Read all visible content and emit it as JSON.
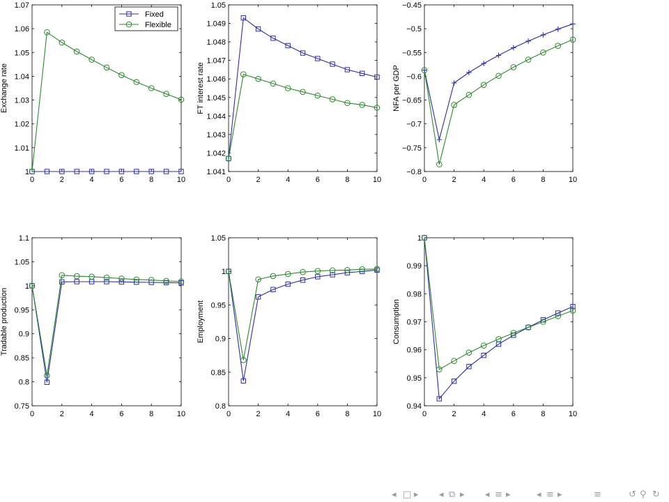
{
  "legend": {
    "fixed": "Fixed",
    "flexible": "Flexible"
  },
  "colors": {
    "fixed": "#2b2bb0",
    "flexible": "#2a8a2a",
    "axis": "#000000"
  },
  "chart_data": [
    {
      "type": "line",
      "ylabel": "Exchange rate",
      "xlim": [
        0,
        10
      ],
      "ylim": [
        1,
        1.07
      ],
      "xticks": [
        "0",
        "2",
        "4",
        "6",
        "8",
        "10"
      ],
      "yticks": [
        "1",
        "1.01",
        "1.02",
        "1.03",
        "1.04",
        "1.05",
        "1.06",
        "1.07"
      ],
      "legend_position": "top-right",
      "series": [
        {
          "name": "Fixed",
          "marker": "square",
          "x": [
            0,
            1,
            2,
            3,
            4,
            5,
            6,
            7,
            8,
            9,
            10
          ],
          "y": [
            1,
            1,
            1,
            1,
            1,
            1,
            1,
            1,
            1,
            1,
            1
          ]
        },
        {
          "name": "Flexible",
          "marker": "circle",
          "x": [
            0,
            1,
            2,
            3,
            4,
            5,
            6,
            7,
            8,
            9,
            10
          ],
          "y": [
            1,
            1.0585,
            1.0542,
            1.0504,
            1.047,
            1.0437,
            1.0405,
            1.0376,
            1.035,
            1.0326,
            1.0302
          ]
        }
      ]
    },
    {
      "type": "line",
      "ylabel": "FT interest rate",
      "xlim": [
        0,
        10
      ],
      "ylim": [
        1.041,
        1.05
      ],
      "xticks": [
        "0",
        "2",
        "4",
        "6",
        "8",
        "10"
      ],
      "yticks": [
        "1.041",
        "1.042",
        "1.043",
        "1.044",
        "1.045",
        "1.046",
        "1.047",
        "1.048",
        "1.049",
        "1.05"
      ],
      "series": [
        {
          "marker": "square",
          "x": [
            0,
            1,
            2,
            3,
            4,
            5,
            6,
            7,
            8,
            9,
            10
          ],
          "y": [
            1.0417,
            1.0493,
            1.0487,
            1.0482,
            1.0478,
            1.0474,
            1.0471,
            1.0468,
            1.0465,
            1.0463,
            1.0461
          ]
        },
        {
          "marker": "circle",
          "x": [
            0,
            1,
            2,
            3,
            4,
            5,
            6,
            7,
            8,
            9,
            10
          ],
          "y": [
            1.0417,
            1.04625,
            1.046,
            1.04575,
            1.0455,
            1.0453,
            1.0451,
            1.0449,
            1.0447,
            1.0446,
            1.04445
          ]
        }
      ]
    },
    {
      "type": "line",
      "ylabel": "NFA per GDP",
      "xlim": [
        0,
        10
      ],
      "ylim": [
        -0.8,
        -0.45
      ],
      "xticks": [
        "0",
        "2",
        "4",
        "6",
        "8",
        "10"
      ],
      "yticks": [
        "−0.8",
        "−0.75",
        "−0.7",
        "−0.65",
        "−0.6",
        "−0.55",
        "−0.5",
        "−0.45"
      ],
      "series": [
        {
          "marker": "plus",
          "x": [
            0,
            1,
            2,
            3,
            4,
            5,
            6,
            7,
            8,
            9,
            10
          ],
          "y": [
            -0.587,
            -0.733,
            -0.614,
            -0.592,
            -0.573,
            -0.556,
            -0.54,
            -0.526,
            -0.513,
            -0.501,
            -0.49
          ]
        },
        {
          "marker": "circle",
          "x": [
            0,
            1,
            2,
            3,
            4,
            5,
            6,
            7,
            8,
            9,
            10
          ],
          "y": [
            -0.587,
            -0.785,
            -0.66,
            -0.639,
            -0.618,
            -0.599,
            -0.581,
            -0.565,
            -0.55,
            -0.536,
            -0.523
          ]
        }
      ]
    },
    {
      "type": "line",
      "ylabel": "Tradable production",
      "xlim": [
        0,
        10
      ],
      "ylim": [
        0.75,
        1.1
      ],
      "xticks": [
        "0",
        "2",
        "4",
        "6",
        "8",
        "10"
      ],
      "yticks": [
        "0.75",
        "0.8",
        "0.85",
        "0.9",
        "0.95",
        "1",
        "1.05",
        "1.1"
      ],
      "series": [
        {
          "marker": "square",
          "x": [
            0,
            1,
            2,
            3,
            4,
            5,
            6,
            7,
            8,
            9,
            10
          ],
          "y": [
            1,
            0.799,
            1.008,
            1.0085,
            1.0085,
            1.0085,
            1.008,
            1.0075,
            1.007,
            1.0065,
            1.006
          ]
        },
        {
          "marker": "circle",
          "x": [
            0,
            1,
            2,
            3,
            4,
            5,
            6,
            7,
            8,
            9,
            10
          ],
          "y": [
            1,
            0.813,
            1.022,
            1.02,
            1.019,
            1.017,
            1.015,
            1.013,
            1.012,
            1.01,
            1.009
          ]
        }
      ]
    },
    {
      "type": "line",
      "ylabel": "Employment",
      "xlim": [
        0,
        10
      ],
      "ylim": [
        0.8,
        1.05
      ],
      "xticks": [
        "0",
        "2",
        "4",
        "6",
        "8",
        "10"
      ],
      "yticks": [
        "0.8",
        "0.85",
        "0.9",
        "0.95",
        "1",
        "1.05"
      ],
      "series": [
        {
          "marker": "square",
          "x": [
            0,
            1,
            2,
            3,
            4,
            5,
            6,
            7,
            8,
            9,
            10
          ],
          "y": [
            1,
            0.837,
            0.962,
            0.973,
            0.981,
            0.987,
            0.992,
            0.995,
            0.998,
            1.0,
            1.002
          ]
        },
        {
          "marker": "circle",
          "x": [
            0,
            1,
            2,
            3,
            4,
            5,
            6,
            7,
            8,
            9,
            10
          ],
          "y": [
            1,
            0.868,
            0.988,
            0.993,
            0.996,
            0.999,
            1.0005,
            1.0015,
            1.002,
            1.003,
            1.0035
          ]
        }
      ]
    },
    {
      "type": "line",
      "ylabel": "Consumption",
      "xlim": [
        0,
        10
      ],
      "ylim": [
        0.94,
        1
      ],
      "xticks": [
        "0",
        "2",
        "4",
        "6",
        "8",
        "10"
      ],
      "yticks": [
        "0.94",
        "0.95",
        "0.96",
        "0.97",
        "0.98",
        "0.99",
        "1"
      ],
      "series": [
        {
          "marker": "square",
          "x": [
            0,
            1,
            2,
            3,
            4,
            5,
            6,
            7,
            8,
            9,
            10
          ],
          "y": [
            1,
            0.9425,
            0.9488,
            0.954,
            0.958,
            0.962,
            0.9652,
            0.968,
            0.9707,
            0.9731,
            0.9754
          ]
        },
        {
          "marker": "circle",
          "x": [
            0,
            1,
            2,
            3,
            4,
            5,
            6,
            7,
            8,
            9,
            10
          ],
          "y": [
            1,
            0.953,
            0.956,
            0.959,
            0.9615,
            0.9638,
            0.966,
            0.968,
            0.97,
            0.972,
            0.974
          ]
        }
      ]
    }
  ],
  "navbar": {
    "icons": [
      "nav-left-arrow-icon",
      "frame-icon",
      "nav-right-arrow-icon",
      "nav-left-arrow-icon",
      "frames-stack-icon",
      "nav-right-arrow-icon",
      "nav-left-arrow-icon",
      "subsection-icon",
      "nav-right-arrow-icon",
      "nav-left-arrow-icon",
      "section-icon",
      "nav-right-arrow-icon",
      "align-icon",
      "back-icon",
      "search-icon",
      "forward-icon"
    ]
  }
}
